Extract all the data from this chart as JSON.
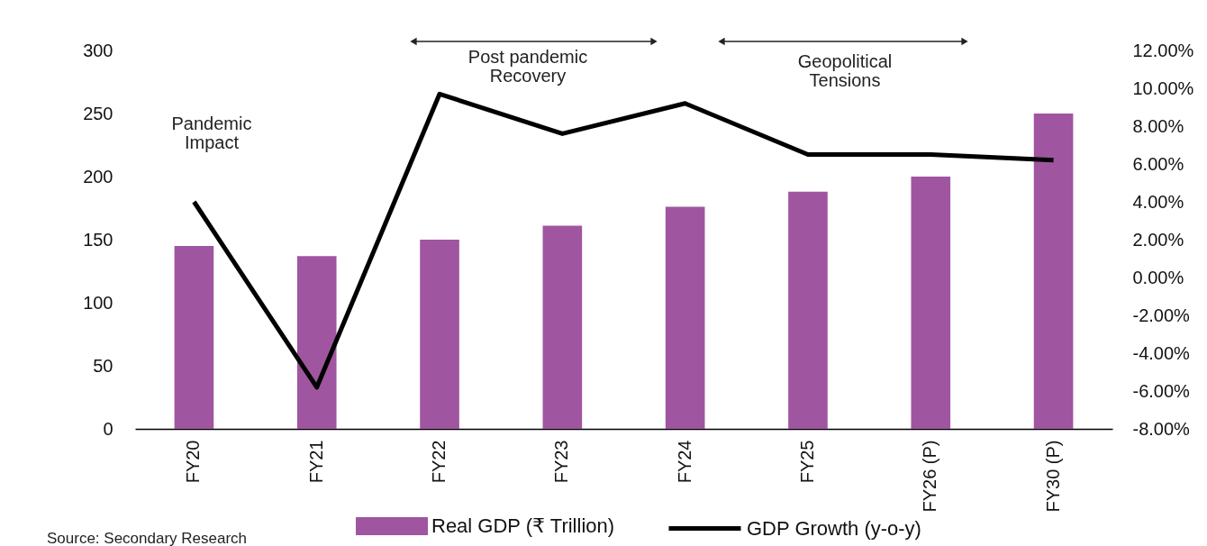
{
  "chart_data": {
    "type": "bar",
    "categories": [
      "FY20",
      "FY21",
      "FY22",
      "FY23",
      "FY24",
      "FY25",
      "FY26 (P)",
      "FY30 (P)"
    ],
    "series": [
      {
        "name": "Real GDP (₹ Trillion)",
        "color": "#a055a0",
        "values": [
          145,
          137,
          150,
          161,
          176,
          188,
          200,
          250
        ]
      },
      {
        "name": "GDP Growth (y-o-y)",
        "type": "line",
        "axis": "y2",
        "color": "#000000",
        "values": [
          4.0,
          -5.8,
          9.7,
          7.6,
          9.2,
          6.5,
          6.5,
          6.2
        ]
      }
    ],
    "ylim": [
      0,
      300
    ],
    "yticks": [
      0,
      50,
      100,
      150,
      200,
      250,
      300
    ],
    "y2lim": [
      -8,
      12
    ],
    "y2ticks": [
      {
        "value": -8,
        "label": "-8.00%"
      },
      {
        "value": -6,
        "label": "-6.00%"
      },
      {
        "value": -4,
        "label": "-4.00%"
      },
      {
        "value": -2,
        "label": "-2.00%"
      },
      {
        "value": 0,
        "label": "0.00%"
      },
      {
        "value": 2,
        "label": "2.00%"
      },
      {
        "value": 4,
        "label": "4.00%"
      },
      {
        "value": 6,
        "label": "6.00%"
      },
      {
        "value": 8,
        "label": "8.00%"
      },
      {
        "value": 10,
        "label": "10.00%"
      },
      {
        "value": 12,
        "label": "12.00%"
      }
    ],
    "grid": false,
    "legend": "bottom",
    "marker": "none",
    "line_style": "solid",
    "annotations": [
      "Pandemic\nImpact",
      "Post pandemic\nRecovery",
      "Geopolitical\nTensions",
      "Source: Secondary Research"
    ]
  }
}
